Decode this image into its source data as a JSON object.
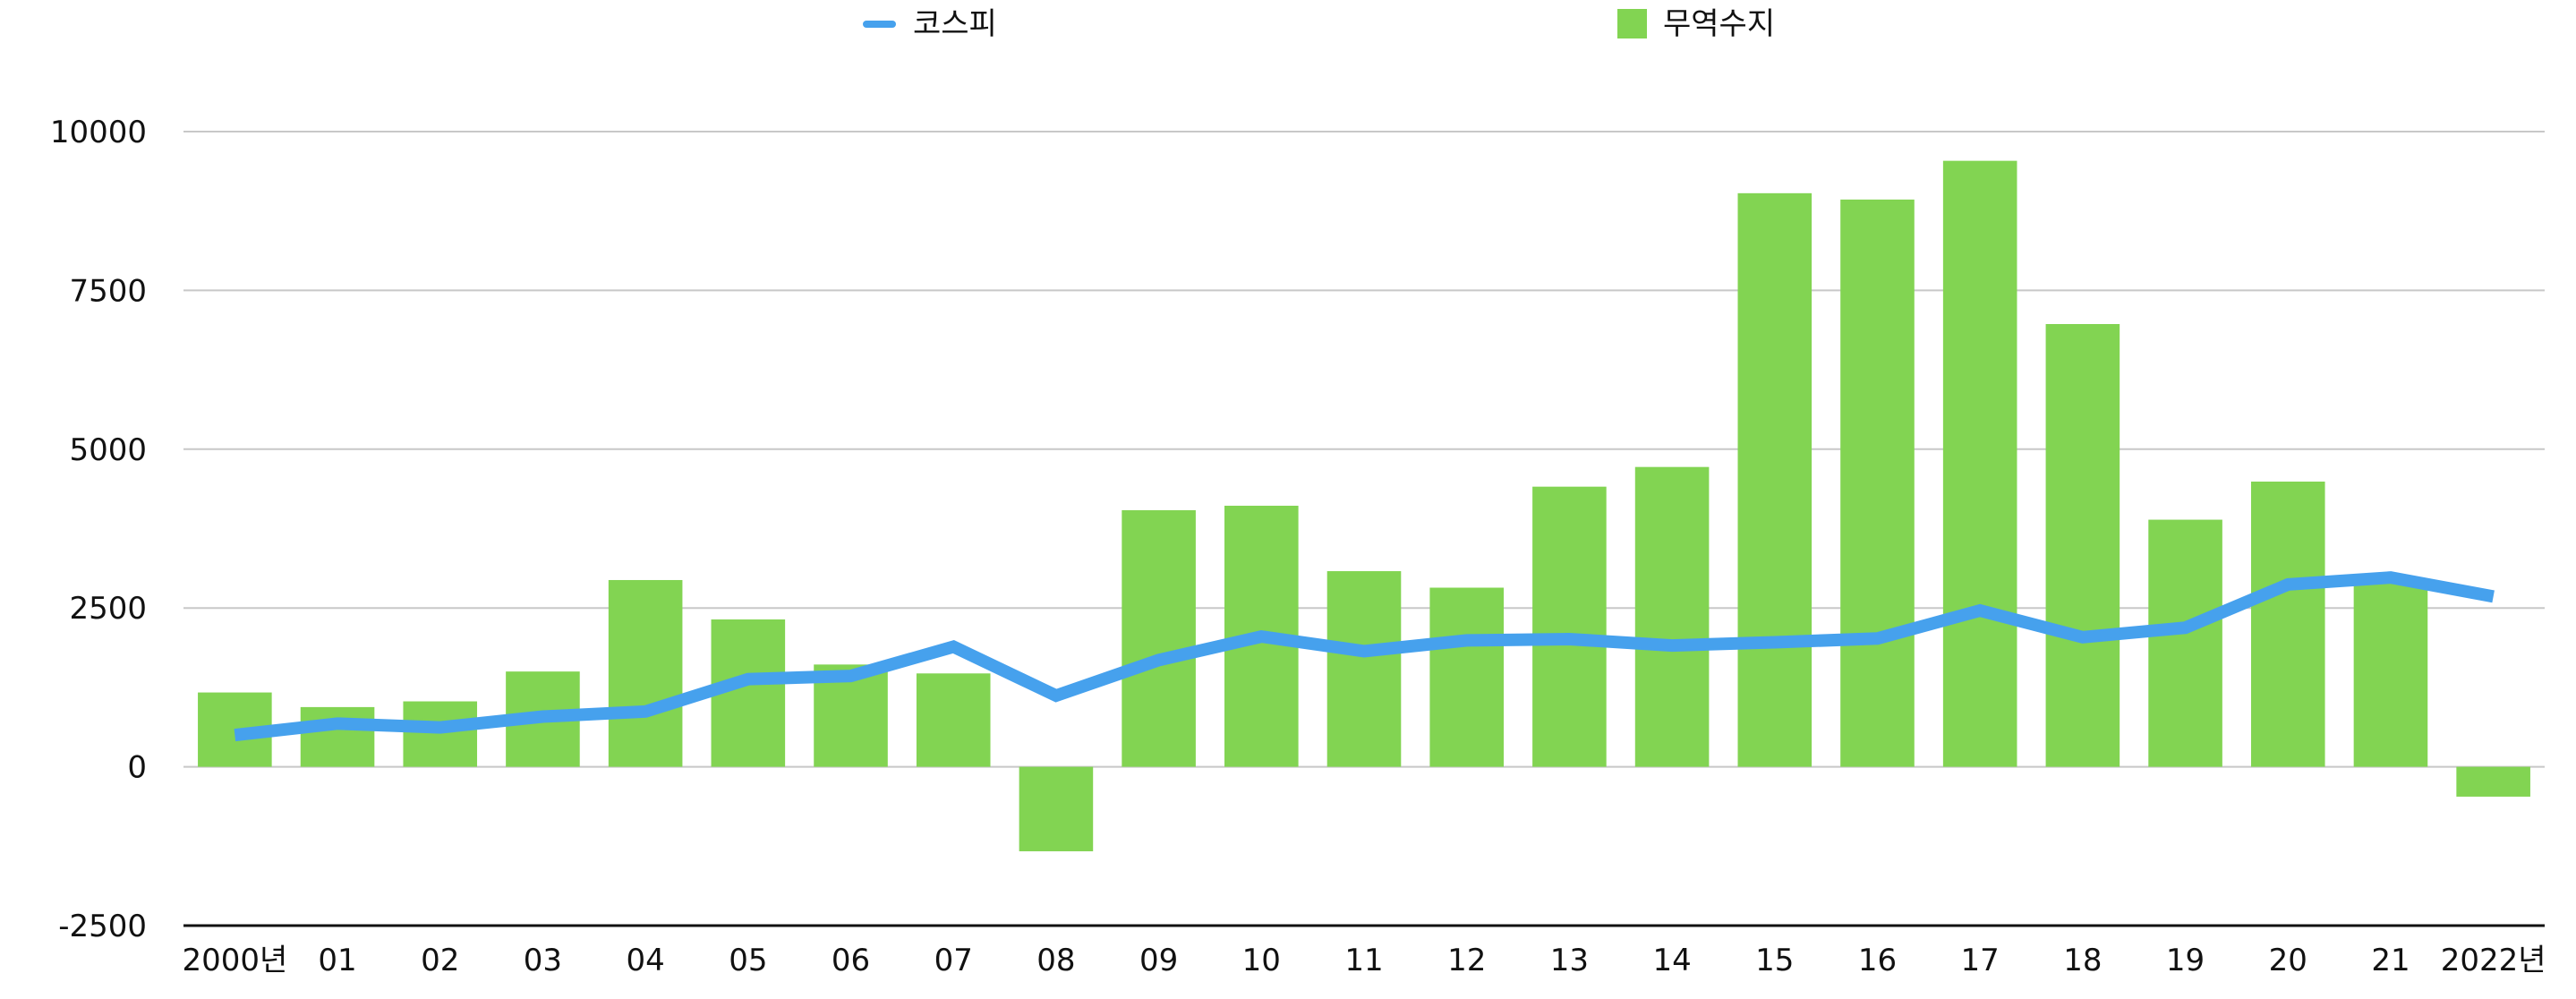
{
  "chart_data": {
    "type": "bar",
    "title": "",
    "xlabel": "",
    "ylabel": "",
    "categories": [
      "2000년",
      "01",
      "02",
      "03",
      "04",
      "05",
      "06",
      "07",
      "08",
      "09",
      "10",
      "11",
      "12",
      "13",
      "14",
      "15",
      "16",
      "17",
      "18",
      "19",
      "20",
      "21",
      "2022년"
    ],
    "yticks": [
      "10000",
      "7500",
      "5000",
      "2500",
      "0",
      "-2500"
    ],
    "ylim": [
      -2500,
      10000
    ],
    "grid": true,
    "legend_position": "top",
    "series": [
      {
        "name": "무역수지",
        "type": "bar",
        "color": "#82d452",
        "values": [
          1170,
          940,
          1030,
          1500,
          2940,
          2320,
          1610,
          1470,
          -1330,
          4040,
          4110,
          3080,
          2820,
          4410,
          4720,
          9030,
          8930,
          9540,
          6970,
          3890,
          4490,
          2950,
          -470
        ]
      },
      {
        "name": "코스피",
        "type": "line",
        "color": "#46a1ed",
        "values": [
          500,
          680,
          620,
          790,
          870,
          1380,
          1430,
          1890,
          1120,
          1680,
          2050,
          1820,
          1990,
          2010,
          1910,
          1960,
          2020,
          2460,
          2040,
          2190,
          2870,
          2980,
          2680
        ]
      }
    ]
  }
}
